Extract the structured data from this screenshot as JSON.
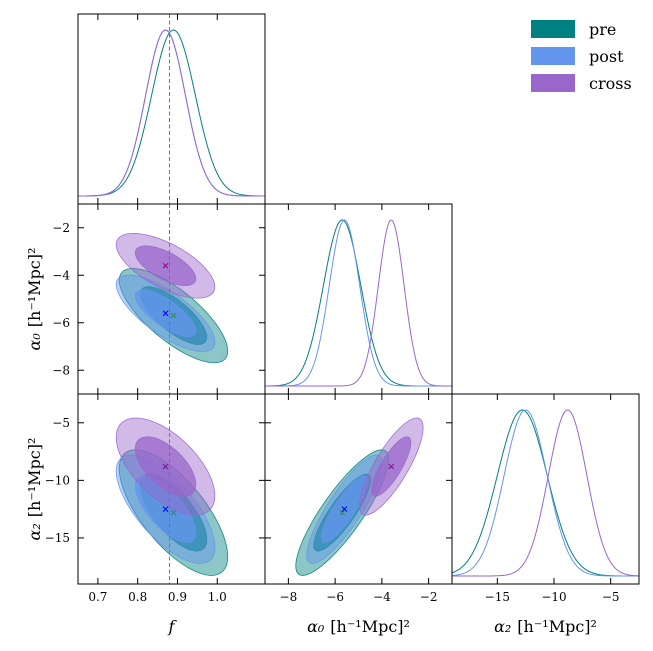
{
  "chart_data": {
    "type": "corner",
    "parameters": [
      {
        "key": "f",
        "label": "f",
        "unit": "",
        "ticks": [
          0.7,
          0.8,
          0.9,
          1.0
        ],
        "tick_labels": [
          "0.7",
          "0.8",
          "0.9",
          "1.0"
        ],
        "range": [
          0.65,
          1.12
        ]
      },
      {
        "key": "a0",
        "label": "α₀",
        "unit": "[h⁻¹Mpc]²",
        "ticks": [
          -8,
          -6,
          -4,
          -2
        ],
        "tick_labels": [
          "−8",
          "−6",
          "−4",
          "−2"
        ],
        "range": [
          -9.0,
          -1.0
        ]
      },
      {
        "key": "a2",
        "label": "α₂",
        "unit": "[h⁻¹Mpc]²",
        "ticks": [
          -15,
          -10,
          -5
        ],
        "tick_labels": [
          "−15",
          "−10",
          "−5"
        ],
        "range": [
          -19.0,
          -2.5
        ]
      }
    ],
    "reference_line": {
      "param": "f",
      "value": 0.88
    },
    "legend": {
      "position": "top-right"
    },
    "series": [
      {
        "name": "pre",
        "color": "#008080",
        "marker_color": "#2e8b57",
        "mean": {
          "f": 0.89,
          "a0": -5.7,
          "a2": -12.8
        },
        "sigma": {
          "f": 0.055,
          "a0": 0.8,
          "a2": 2.2
        },
        "corr": {
          "f_a0": -0.75,
          "f_a2": -0.7,
          "a0_a2": 0.85
        }
      },
      {
        "name": "post",
        "color": "#6495ed",
        "marker_color": "#0000ff",
        "mean": {
          "f": 0.87,
          "a0": -5.6,
          "a2": -12.5
        },
        "sigma": {
          "f": 0.05,
          "a0": 0.65,
          "a2": 1.9
        },
        "corr": {
          "f_a0": -0.75,
          "f_a2": -0.7,
          "a0_a2": 0.85
        }
      },
      {
        "name": "cross",
        "color": "#9966cc",
        "marker_color": "#8b008b",
        "mean": {
          "f": 0.87,
          "a0": -3.6,
          "a2": -8.8
        },
        "sigma": {
          "f": 0.05,
          "a0": 0.55,
          "a2": 1.7
        },
        "corr": {
          "f_a0": -0.65,
          "f_a2": -0.6,
          "a0_a2": 0.8
        }
      }
    ]
  }
}
